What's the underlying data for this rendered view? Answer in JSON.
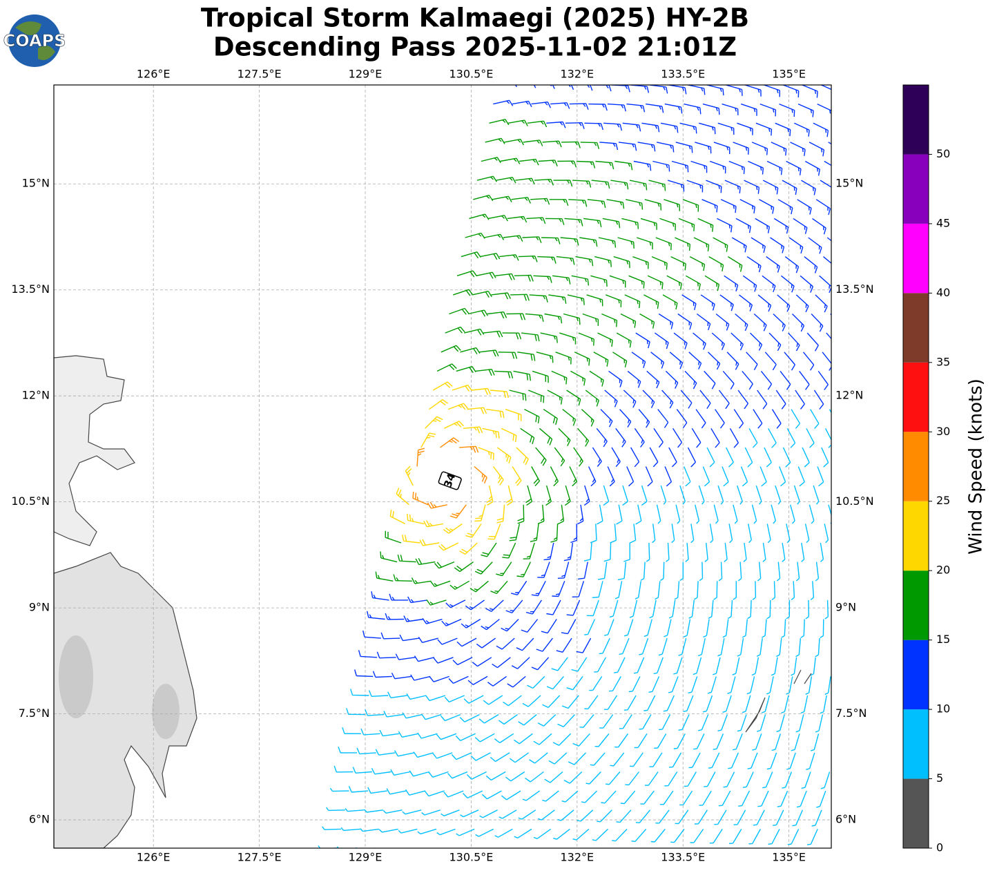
{
  "logo": "COAPS",
  "title": [
    "Tropical Storm Kalmaegi (2025) HY-2B",
    "Descending Pass 2025-11-02 21:01Z"
  ],
  "map": {
    "xlim": [
      124.59,
      135.6
    ],
    "ylim": [
      5.6,
      16.4
    ],
    "xticks": [
      {
        "value": 126,
        "label": "126°E"
      },
      {
        "value": 127.5,
        "label": "127.5°E"
      },
      {
        "value": 129,
        "label": "129°E"
      },
      {
        "value": 130.5,
        "label": "130.5°E"
      },
      {
        "value": 132,
        "label": "132°E"
      },
      {
        "value": 133.5,
        "label": "133.5°E"
      },
      {
        "value": 135,
        "label": "135°E"
      }
    ],
    "yticks": [
      {
        "value": 6,
        "label": "6°N"
      },
      {
        "value": 7.5,
        "label": "7.5°N"
      },
      {
        "value": 9,
        "label": "9°N"
      },
      {
        "value": 10.5,
        "label": "10.5°N"
      },
      {
        "value": 12,
        "label": "12°N"
      },
      {
        "value": 13.5,
        "label": "13.5°N"
      },
      {
        "value": 15,
        "label": "15°N"
      }
    ],
    "grid": true,
    "annotation": {
      "text": "34",
      "lon": 130.2,
      "lat": 10.8
    }
  },
  "colorbar": {
    "label": "Wind Speed (knots)",
    "bounds": [
      0,
      5,
      10,
      15,
      20,
      25,
      30,
      35,
      40,
      45,
      50,
      55
    ],
    "colors": [
      "#555555",
      "#00bfff",
      "#0033ff",
      "#009900",
      "#ffd700",
      "#ff8c00",
      "#ff1010",
      "#7f3b2a",
      "#ff00ff",
      "#8800bb",
      "#2e0057"
    ],
    "ticks": [
      0,
      5,
      10,
      15,
      20,
      25,
      30,
      35,
      40,
      45,
      50
    ]
  }
}
